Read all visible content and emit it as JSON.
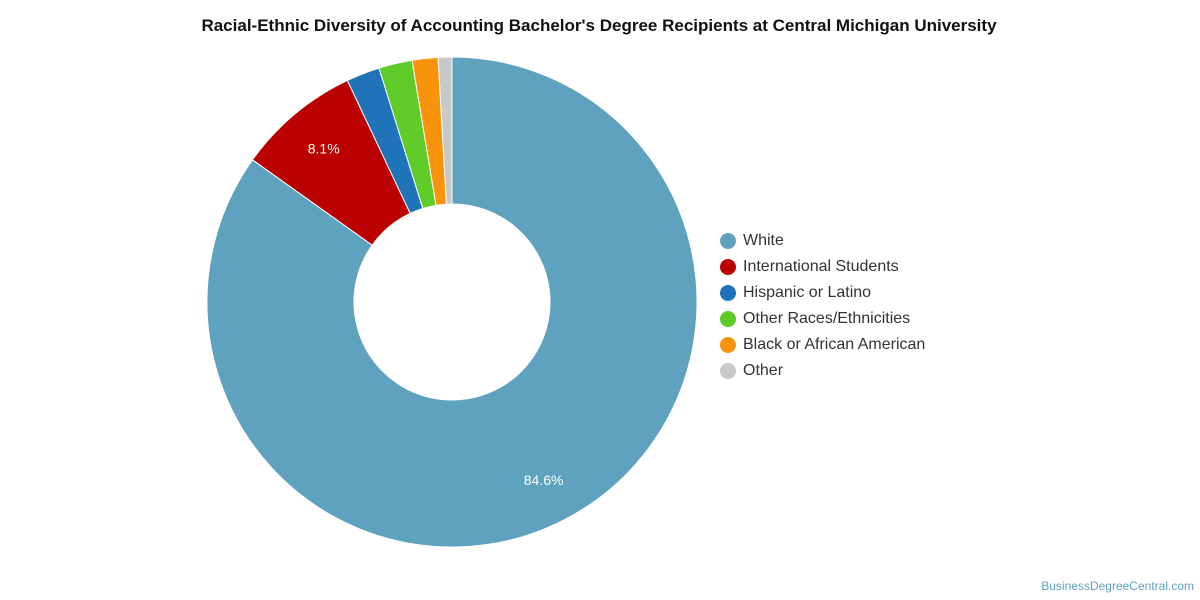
{
  "chart_data": {
    "type": "pie",
    "title": "Racial-Ethnic Diversity of Accounting Bachelor's Degree Recipients at Central Michigan University",
    "donut": true,
    "legend_position": "right",
    "slices": [
      {
        "name": "White",
        "value": 84.6,
        "label": "84.6%",
        "color": "#5fa2bf"
      },
      {
        "name": "International Students",
        "value": 8.1,
        "label": "8.1%",
        "color": "#bb0000"
      },
      {
        "name": "Hispanic or Latino",
        "value": 2.2,
        "label": "",
        "color": "#1f73b9"
      },
      {
        "name": "Other Races/Ethnicities",
        "value": 2.2,
        "label": "",
        "color": "#5ecb29"
      },
      {
        "name": "Black or African American",
        "value": 1.7,
        "label": "",
        "color": "#f8940b"
      },
      {
        "name": "Other",
        "value": 0.9,
        "label": "",
        "color": "#c8c8c8"
      }
    ]
  },
  "credit": "BusinessDegreeCentral.com"
}
